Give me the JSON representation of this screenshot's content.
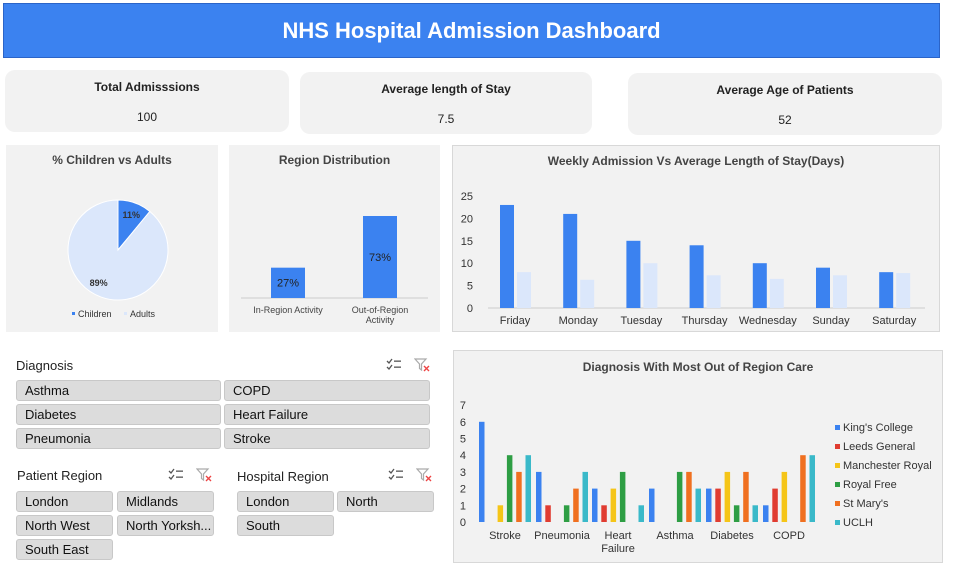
{
  "header": {
    "title": "NHS Hospital Admission Dashboard"
  },
  "kpis": [
    {
      "label": "Total Admisssions",
      "value": "100"
    },
    {
      "label": "Average length of Stay",
      "value": "7.5"
    },
    {
      "label": "Average Age of Patients",
      "value": "52"
    }
  ],
  "pie_chart": {
    "title": "% Children vs Adults",
    "chart_data": {
      "type": "pie",
      "categories": [
        "Children",
        "Adults"
      ],
      "values": [
        11,
        89
      ],
      "data_labels": [
        "11%",
        "89%"
      ],
      "colors": [
        "#3b82f0",
        "#dbe7fb"
      ],
      "legend": "bottom"
    }
  },
  "region_chart": {
    "title": "Region Distribution",
    "chart_data": {
      "type": "bar",
      "categories": [
        "In-Region Activity",
        "Out-of-Region Activity"
      ],
      "values": [
        27,
        73
      ],
      "data_labels": [
        "27%",
        "73%"
      ],
      "color": "#3b82f0"
    }
  },
  "weekly_chart": {
    "title": "Weekly Admission Vs Average Length of Stay(Days)",
    "chart_data": {
      "type": "bar",
      "categories": [
        "Friday",
        "Monday",
        "Tuesday",
        "Thursday",
        "Wednesday",
        "Sunday",
        "Saturday"
      ],
      "series": [
        {
          "values": [
            23,
            21,
            15,
            14,
            10,
            9,
            8
          ],
          "color": "#3b82f0"
        },
        {
          "values": [
            8,
            6.3,
            10,
            7.3,
            6.5,
            7.3,
            7.8
          ],
          "color": "#dbe7fb"
        }
      ],
      "ylim": [
        0,
        25
      ],
      "yticks": [
        "0",
        "5",
        "10",
        "15",
        "20",
        "25"
      ],
      "grid": false
    }
  },
  "diagnosis_chart": {
    "title": "Diagnosis With Most Out of Region Care",
    "chart_data": {
      "type": "bar",
      "categories": [
        "Stroke",
        "Pneumonia",
        "Heart Failure",
        "Asthma",
        "Diabetes",
        "COPD"
      ],
      "category_lines": [
        [
          "Stroke"
        ],
        [
          "Pneumonia"
        ],
        [
          "Heart",
          "Failure"
        ],
        [
          "Asthma"
        ],
        [
          "Diabetes"
        ],
        [
          "COPD"
        ]
      ],
      "series": [
        {
          "name": "King's College",
          "color": "#3b82f0",
          "values": [
            6,
            3,
            2,
            2,
            2,
            1
          ]
        },
        {
          "name": "Leeds General",
          "color": "#e03c31",
          "values": [
            0,
            1,
            1,
            0,
            2,
            2
          ]
        },
        {
          "name": "Manchester Royal",
          "color": "#f5c518",
          "values": [
            1,
            0,
            2,
            0,
            3,
            3
          ]
        },
        {
          "name": "Royal Free",
          "color": "#2e9e44",
          "values": [
            4,
            1,
            3,
            3,
            1,
            0
          ]
        },
        {
          "name": "St Mary's",
          "color": "#f07020",
          "values": [
            3,
            2,
            0,
            3,
            3,
            4
          ]
        },
        {
          "name": "UCLH",
          "color": "#3ab9c9",
          "values": [
            4,
            3,
            1,
            2,
            1,
            4
          ]
        }
      ],
      "ylim": [
        0,
        7
      ],
      "yticks": [
        "0",
        "1",
        "2",
        "3",
        "4",
        "5",
        "6",
        "7"
      ],
      "legend": "right"
    }
  },
  "slicers": {
    "diagnosis": {
      "title": "Diagnosis",
      "items": [
        "Asthma",
        "COPD",
        "Diabetes",
        "Heart Failure",
        "Pneumonia",
        "Stroke"
      ]
    },
    "patient_region": {
      "title": "Patient Region",
      "items": [
        "London",
        "Midlands",
        "North West",
        "North Yorksh...",
        "South East"
      ]
    },
    "hospital_region": {
      "title": "Hospital Region",
      "items": [
        "London",
        "North",
        "South"
      ]
    }
  },
  "icons": {
    "multi_select": "multi-select-icon",
    "clear_filter": "clear-filter-icon"
  }
}
